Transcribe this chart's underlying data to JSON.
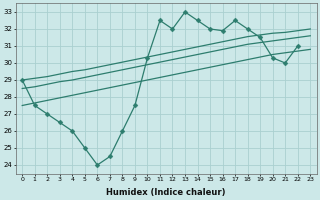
{
  "xlabel": "Humidex (Indice chaleur)",
  "background_color": "#cce8e8",
  "grid_color": "#aad0d0",
  "line_color": "#2d7d6e",
  "x": [
    0,
    1,
    2,
    3,
    4,
    5,
    6,
    7,
    8,
    9,
    10,
    11,
    12,
    13,
    14,
    15,
    16,
    17,
    18,
    19,
    20,
    21,
    22,
    23
  ],
  "series1_x": [
    0,
    1,
    2,
    3,
    4,
    5,
    6,
    7,
    8,
    9,
    10,
    11,
    12,
    13,
    14,
    15,
    16,
    17,
    18,
    19,
    20,
    21,
    22
  ],
  "series1_y": [
    29,
    27.5,
    27.0,
    26.5,
    26.0,
    25.0,
    24.0,
    24.5,
    26.0,
    27.5,
    30.3,
    32.5,
    32.0,
    33.0,
    32.5,
    32.0,
    31.9,
    32.5,
    32.0,
    31.5,
    30.3,
    30.0,
    31.0
  ],
  "series2": [
    29.0,
    29.1,
    29.2,
    29.35,
    29.5,
    29.6,
    29.75,
    29.9,
    30.05,
    30.2,
    30.35,
    30.5,
    30.65,
    30.8,
    30.95,
    31.1,
    31.25,
    31.4,
    31.55,
    31.65,
    31.75,
    31.8,
    31.9,
    32.0
  ],
  "series3": [
    28.5,
    28.6,
    28.75,
    28.9,
    29.0,
    29.15,
    29.3,
    29.45,
    29.6,
    29.75,
    29.9,
    30.05,
    30.2,
    30.35,
    30.5,
    30.65,
    30.8,
    30.95,
    31.1,
    31.2,
    31.3,
    31.4,
    31.5,
    31.6
  ],
  "series4": [
    27.5,
    27.65,
    27.8,
    27.95,
    28.1,
    28.25,
    28.4,
    28.55,
    28.7,
    28.85,
    29.0,
    29.15,
    29.3,
    29.45,
    29.6,
    29.75,
    29.9,
    30.05,
    30.2,
    30.35,
    30.5,
    30.6,
    30.7,
    30.8
  ],
  "ylim": [
    23.5,
    33.5
  ],
  "yticks": [
    24,
    25,
    26,
    27,
    28,
    29,
    30,
    31,
    32,
    33
  ],
  "xticks": [
    0,
    1,
    2,
    3,
    4,
    5,
    6,
    7,
    8,
    9,
    10,
    11,
    12,
    13,
    14,
    15,
    16,
    17,
    18,
    19,
    20,
    21,
    22,
    23
  ],
  "xlim": [
    -0.5,
    23.5
  ],
  "markersize": 2.5,
  "linewidth": 0.9
}
